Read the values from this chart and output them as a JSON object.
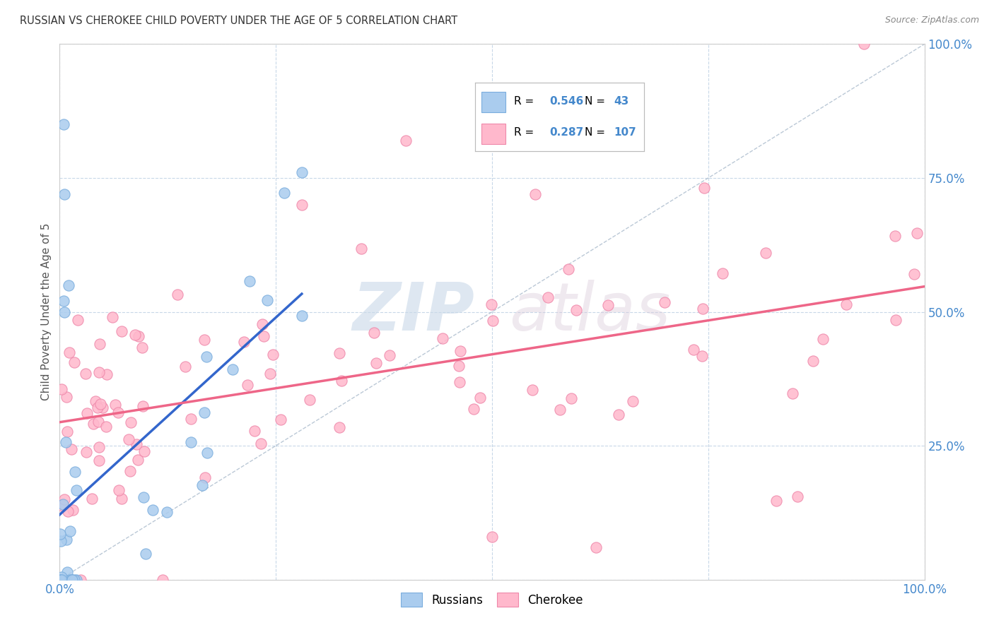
{
  "title": "RUSSIAN VS CHEROKEE CHILD POVERTY UNDER THE AGE OF 5 CORRELATION CHART",
  "source": "Source: ZipAtlas.com",
  "ylabel": "Child Poverty Under the Age of 5",
  "xlim": [
    0,
    1.0
  ],
  "ylim": [
    0,
    1.0
  ],
  "background_color": "#ffffff",
  "grid_color": "#c8d8e8",
  "watermark_zip": "ZIP",
  "watermark_atlas": "atlas",
  "russians_color": "#aaccee",
  "russians_edge_color": "#7aaddd",
  "cherokee_color": "#ffb8cc",
  "cherokee_edge_color": "#ee88aa",
  "russians_line_color": "#3366cc",
  "cherokee_line_color": "#ee6688",
  "diagonal_color": "#aabbcc",
  "legend_r_russian": "0.546",
  "legend_n_russian": "43",
  "legend_r_cherokee": "0.287",
  "legend_n_cherokee": "107",
  "tick_color": "#4488cc",
  "title_color": "#333333",
  "source_color": "#888888"
}
